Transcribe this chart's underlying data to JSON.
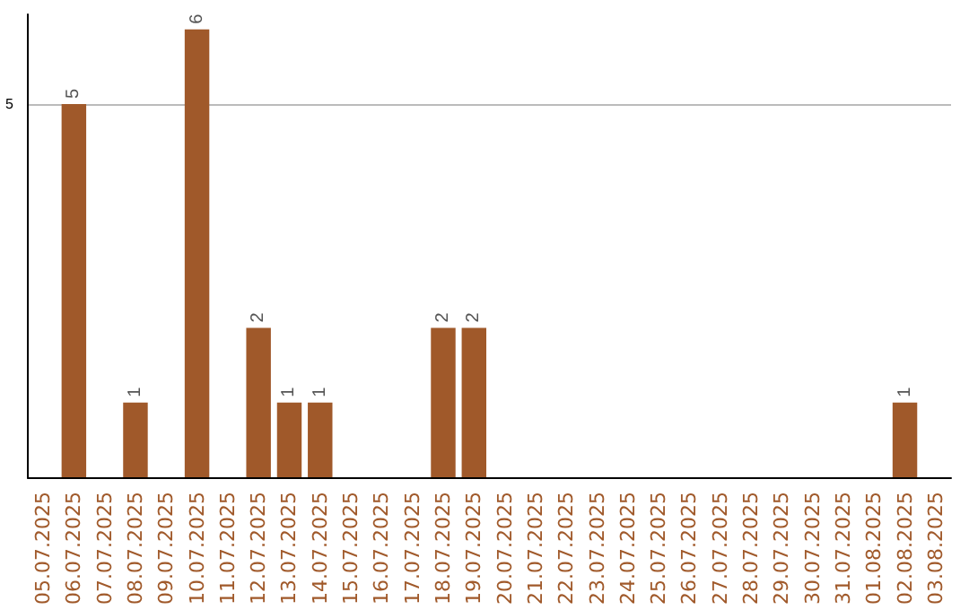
{
  "chart_data": {
    "type": "bar",
    "categories": [
      "05.07.2025",
      "06.07.2025",
      "07.07.2025",
      "08.07.2025",
      "09.07.2025",
      "10.07.2025",
      "11.07.2025",
      "12.07.2025",
      "13.07.2025",
      "14.07.2025",
      "15.07.2025",
      "16.07.2025",
      "17.07.2025",
      "18.07.2025",
      "19.07.2025",
      "20.07.2025",
      "21.07.2025",
      "22.07.2025",
      "23.07.2025",
      "24.07.2025",
      "25.07.2025",
      "26.07.2025",
      "27.07.2025",
      "28.07.2025",
      "29.07.2025",
      "30.07.2025",
      "31.07.2025",
      "01.08.2025",
      "02.08.2025",
      "03.08.2025"
    ],
    "values": [
      0,
      5,
      0,
      1,
      0,
      6,
      0,
      2,
      1,
      1,
      0,
      0,
      0,
      2,
      2,
      0,
      0,
      0,
      0,
      0,
      0,
      0,
      0,
      0,
      0,
      0,
      0,
      0,
      1,
      0
    ],
    "value_labels": [
      null,
      "5",
      null,
      "1",
      null,
      "6",
      null,
      "2",
      "1",
      "1",
      null,
      null,
      null,
      "2",
      "2",
      null,
      null,
      null,
      null,
      null,
      null,
      null,
      null,
      null,
      null,
      null,
      null,
      null,
      "1",
      null
    ],
    "color": "#a0592a",
    "ylim": [
      0,
      6.2
    ],
    "yticks": [
      5
    ],
    "grid": "y"
  }
}
